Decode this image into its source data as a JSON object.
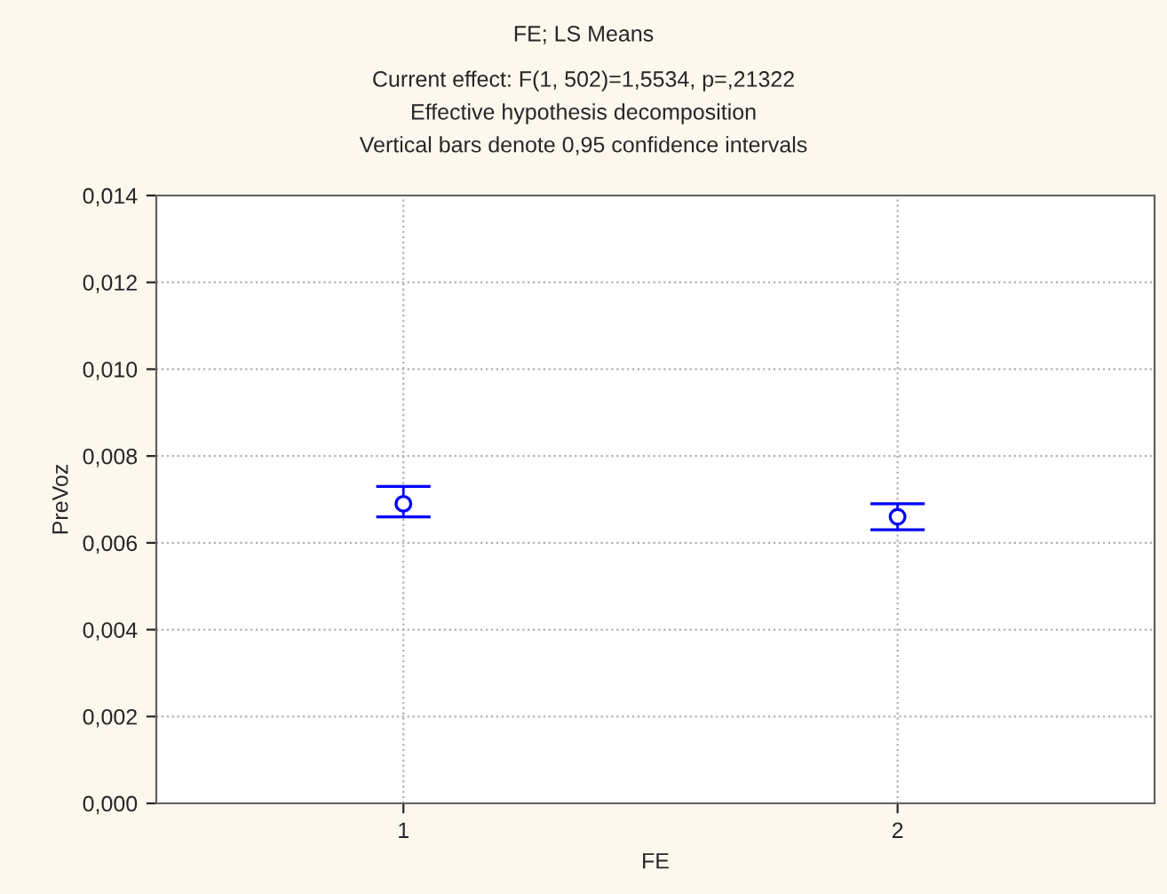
{
  "chart_data": {
    "type": "scatter",
    "title": "FE; LS Means",
    "subtitle": "Current effect: F(1, 502)=1,5534, p=,21322\nEffective hypothesis decomposition\nVertical bars denote 0,95 confidence intervals",
    "xlabel": "FE",
    "ylabel": "PreVoz",
    "categories": [
      "1",
      "2"
    ],
    "values": [
      0.0069,
      0.0066
    ],
    "errors": [
      [
        0.0066,
        0.0073
      ],
      [
        0.0063,
        0.0069
      ]
    ],
    "color": "#0000ff",
    "marker": "circle",
    "grid": true,
    "ylim": [
      0,
      0.014
    ],
    "yticks": [
      {
        "value": 0,
        "label": "0,000"
      },
      {
        "value": 0.002,
        "label": "0,002"
      },
      {
        "value": 0.004,
        "label": "0,004"
      },
      {
        "value": 0.006,
        "label": "0,006"
      },
      {
        "value": 0.008,
        "label": "0,008"
      },
      {
        "value": 0.01,
        "label": "0,010"
      },
      {
        "value": 0.012,
        "label": "0,012"
      },
      {
        "value": 0.014,
        "label": "0,014"
      }
    ]
  }
}
